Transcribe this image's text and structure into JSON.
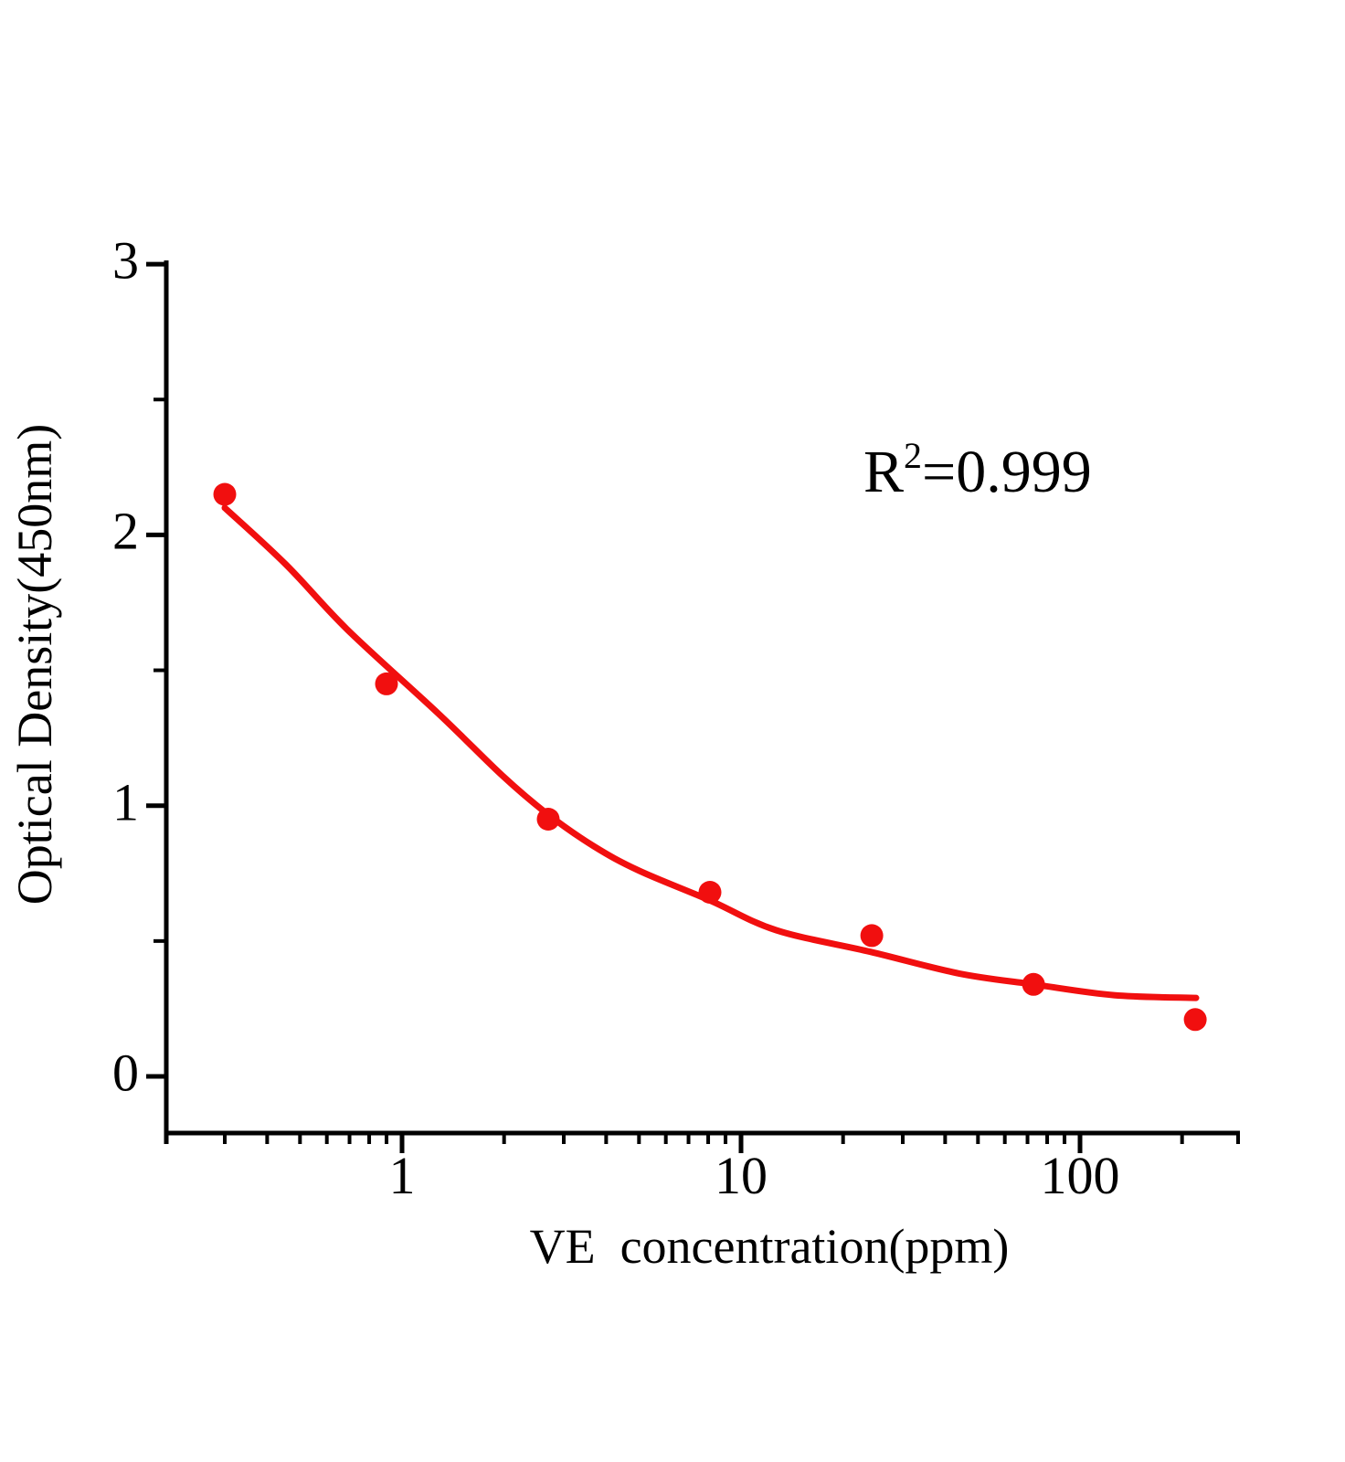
{
  "figure": {
    "background": "#ffffff",
    "axis_color": "#000000",
    "series_color": "#f10f0f"
  },
  "chart_data": {
    "type": "scatter",
    "title": "",
    "xlabel": "VE  concentration(ppm)",
    "ylabel": "Optical Density(450nm)",
    "x_scale": "log",
    "xlim": [
      0.2,
      300
    ],
    "ylim": [
      -0.21,
      3
    ],
    "grid": "off",
    "legend": "none",
    "x_major_ticks": [
      1,
      10,
      100
    ],
    "x_major_tick_labels": [
      "1",
      "10",
      "100"
    ],
    "x_minor_ticks": [
      0.3,
      0.4,
      0.5,
      0.6,
      0.7,
      0.8,
      0.9,
      2,
      3,
      4,
      5,
      6,
      7,
      8,
      9,
      20,
      30,
      40,
      50,
      60,
      70,
      80,
      90,
      200,
      300
    ],
    "y_major_ticks": [
      0,
      1,
      2,
      3
    ],
    "y_major_tick_labels": [
      "0",
      "1",
      "2",
      "3"
    ],
    "y_minor_ticks": [
      0.5,
      1.5,
      2.5
    ],
    "series": [
      {
        "name": "standard-points",
        "type": "scatter",
        "color": "#f10f0f",
        "marker": "circle",
        "points": [
          {
            "x": 0.3,
            "y": 2.15
          },
          {
            "x": 0.9,
            "y": 1.45
          },
          {
            "x": 2.7,
            "y": 0.95
          },
          {
            "x": 8.1,
            "y": 0.68
          },
          {
            "x": 24.3,
            "y": 0.52
          },
          {
            "x": 72.9,
            "y": 0.34
          },
          {
            "x": 218.7,
            "y": 0.21
          }
        ]
      },
      {
        "name": "fit-curve",
        "type": "line",
        "color": "#f10f0f",
        "points": [
          {
            "x": 0.3,
            "y": 2.1
          },
          {
            "x": 0.455,
            "y": 1.89
          },
          {
            "x": 0.69,
            "y": 1.65
          },
          {
            "x": 1.28,
            "y": 1.34
          },
          {
            "x": 1.98,
            "y": 1.11
          },
          {
            "x": 2.68,
            "y": 0.97
          },
          {
            "x": 3.68,
            "y": 0.85
          },
          {
            "x": 5.0,
            "y": 0.76
          },
          {
            "x": 8.1,
            "y": 0.65
          },
          {
            "x": 12.7,
            "y": 0.54
          },
          {
            "x": 24.1,
            "y": 0.46
          },
          {
            "x": 44.0,
            "y": 0.38
          },
          {
            "x": 72.9,
            "y": 0.34
          },
          {
            "x": 126.0,
            "y": 0.3
          },
          {
            "x": 220.0,
            "y": 0.29
          }
        ]
      }
    ],
    "annotation": {
      "base": "R",
      "superscript": "2",
      "rest": "=0.999",
      "r_squared": 0.999
    }
  }
}
